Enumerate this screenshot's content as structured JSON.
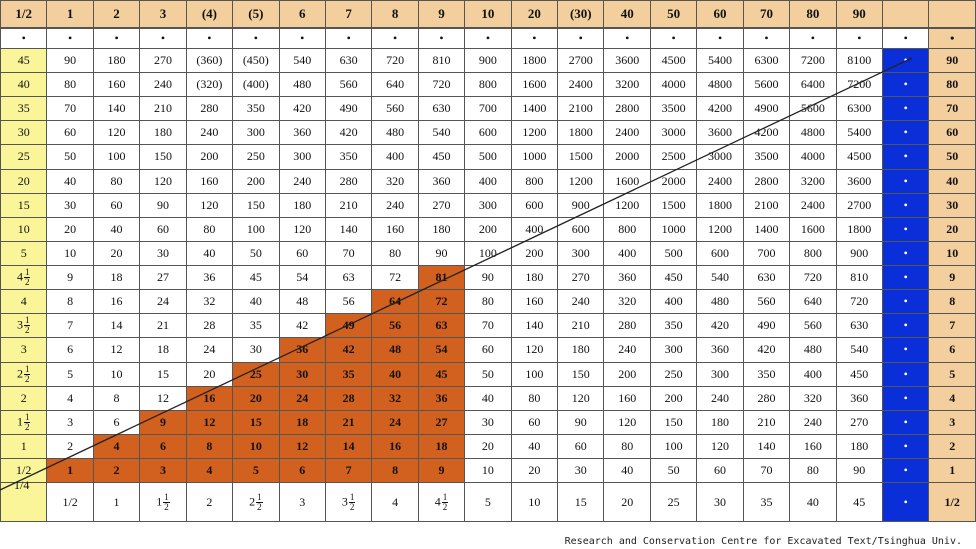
{
  "header": [
    "1/2",
    "1",
    "2",
    "3",
    "(4)",
    "(5)",
    "6",
    "7",
    "8",
    "9",
    "10",
    "20",
    "(30)",
    "40",
    "50",
    "60",
    "70",
    "80",
    "90",
    "",
    ""
  ],
  "dot": "•",
  "row_labels_left": [
    "45",
    "40",
    "35",
    "30",
    "25",
    "20",
    "15",
    "10",
    "5",
    "4½",
    "4",
    "3½",
    "3",
    "2½",
    "2",
    "1½",
    "1",
    "1/2"
  ],
  "row_labels_right": [
    "90",
    "80",
    "70",
    "60",
    "50",
    "40",
    "30",
    "20",
    "10",
    "9",
    "8",
    "7",
    "6",
    "5",
    "4",
    "3",
    "2",
    "1"
  ],
  "rows": [
    [
      "90",
      "180",
      "270",
      "(360)",
      "(450)",
      "540",
      "630",
      "720",
      "810",
      "900",
      "1800",
      "2700",
      "3600",
      "4500",
      "5400",
      "6300",
      "7200",
      "8100"
    ],
    [
      "80",
      "160",
      "240",
      "(320)",
      "(400)",
      "480",
      "560",
      "640",
      "720",
      "800",
      "1600",
      "2400",
      "3200",
      "4000",
      "4800",
      "5600",
      "6400",
      "7200"
    ],
    [
      "70",
      "140",
      "210",
      "280",
      "350",
      "420",
      "490",
      "560",
      "630",
      "700",
      "1400",
      "2100",
      "2800",
      "3500",
      "4200",
      "4900",
      "5600",
      "6300"
    ],
    [
      "60",
      "120",
      "180",
      "240",
      "300",
      "360",
      "420",
      "480",
      "540",
      "600",
      "1200",
      "1800",
      "2400",
      "3000",
      "3600",
      "4200",
      "4800",
      "5400"
    ],
    [
      "50",
      "100",
      "150",
      "200",
      "250",
      "300",
      "350",
      "400",
      "450",
      "500",
      "1000",
      "1500",
      "2000",
      "2500",
      "3000",
      "3500",
      "4000",
      "4500"
    ],
    [
      "40",
      "80",
      "120",
      "160",
      "200",
      "240",
      "280",
      "320",
      "360",
      "400",
      "800",
      "1200",
      "1600",
      "2000",
      "2400",
      "2800",
      "3200",
      "3600"
    ],
    [
      "30",
      "60",
      "90",
      "120",
      "150",
      "180",
      "210",
      "240",
      "270",
      "300",
      "600",
      "900",
      "1200",
      "1500",
      "1800",
      "2100",
      "2400",
      "2700"
    ],
    [
      "20",
      "40",
      "60",
      "80",
      "100",
      "120",
      "140",
      "160",
      "180",
      "200",
      "400",
      "600",
      "800",
      "1000",
      "1200",
      "1400",
      "1600",
      "1800"
    ],
    [
      "10",
      "20",
      "30",
      "40",
      "50",
      "60",
      "70",
      "80",
      "90",
      "100",
      "200",
      "300",
      "400",
      "500",
      "600",
      "700",
      "800",
      "900"
    ],
    [
      "9",
      "18",
      "27",
      "36",
      "45",
      "54",
      "63",
      "72",
      "81",
      "90",
      "180",
      "270",
      "360",
      "450",
      "540",
      "630",
      "720",
      "810"
    ],
    [
      "8",
      "16",
      "24",
      "32",
      "40",
      "48",
      "56",
      "64",
      "72",
      "80",
      "160",
      "240",
      "320",
      "400",
      "480",
      "560",
      "640",
      "720"
    ],
    [
      "7",
      "14",
      "21",
      "28",
      "35",
      "42",
      "49",
      "56",
      "63",
      "70",
      "140",
      "210",
      "280",
      "350",
      "420",
      "490",
      "560",
      "630"
    ],
    [
      "6",
      "12",
      "18",
      "24",
      "30",
      "36",
      "42",
      "48",
      "54",
      "60",
      "120",
      "180",
      "240",
      "300",
      "360",
      "420",
      "480",
      "540"
    ],
    [
      "5",
      "10",
      "15",
      "20",
      "25",
      "30",
      "35",
      "40",
      "45",
      "50",
      "100",
      "150",
      "200",
      "250",
      "300",
      "350",
      "400",
      "450"
    ],
    [
      "4",
      "8",
      "12",
      "16",
      "20",
      "24",
      "28",
      "32",
      "36",
      "40",
      "80",
      "120",
      "160",
      "200",
      "240",
      "280",
      "320",
      "360"
    ],
    [
      "3",
      "6",
      "9",
      "12",
      "15",
      "18",
      "21",
      "24",
      "27",
      "30",
      "60",
      "90",
      "120",
      "150",
      "180",
      "210",
      "240",
      "270"
    ],
    [
      "2",
      "4",
      "6",
      "8",
      "10",
      "12",
      "14",
      "16",
      "18",
      "20",
      "40",
      "60",
      "80",
      "100",
      "120",
      "140",
      "160",
      "180"
    ],
    [
      "1",
      "2",
      "3",
      "4",
      "5",
      "6",
      "7",
      "8",
      "9",
      "10",
      "20",
      "30",
      "40",
      "50",
      "60",
      "70",
      "80",
      "90"
    ]
  ],
  "bottom_row": [
    "1/2",
    "1",
    "1½",
    "2",
    "2½",
    "3",
    "3½",
    "4",
    "4½",
    "5",
    "10",
    "15",
    "20",
    "25",
    "30",
    "35",
    "40",
    "45",
    "•",
    "1/2"
  ],
  "corner_label": "1/4",
  "footer": "Research and Conservation Centre for Excavated Text/Tsinghua Univ.",
  "colors": {
    "header_bg": "#f4cf9e",
    "yellow": "#fbf59a",
    "blue": "#0a2fd8",
    "orange": "#d2601f"
  }
}
